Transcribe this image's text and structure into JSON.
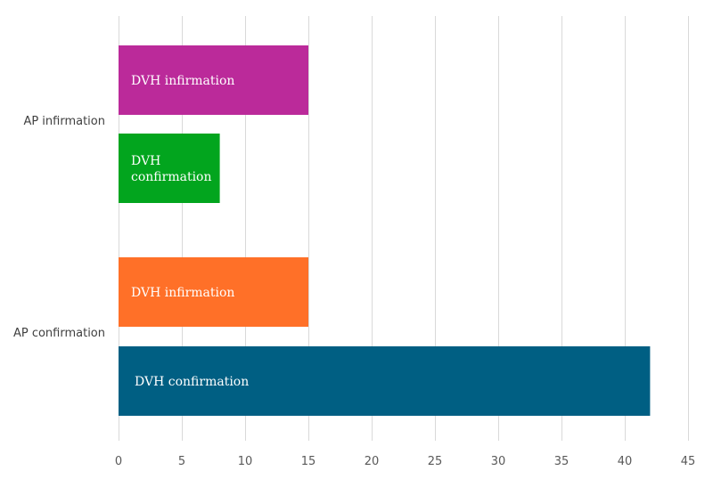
{
  "chart_data": {
    "type": "bar",
    "orientation": "horizontal",
    "title": "",
    "xlabel": "",
    "ylabel": "",
    "xlim": [
      0,
      45
    ],
    "x_ticks": [
      "0",
      "5",
      "10",
      "15",
      "20",
      "25",
      "30",
      "35",
      "40",
      "45"
    ],
    "grid": true,
    "legend": "none",
    "groups": [
      {
        "category": "AP infirmation",
        "bars": [
          {
            "label": "DVH infirmation",
            "value": 15,
            "color": "#BB2A9A"
          },
          {
            "label": "DVH confirmation",
            "value": 8,
            "color": "#02A51E"
          }
        ]
      },
      {
        "category": "AP confirmation",
        "bars": [
          {
            "label": "DVH infirmation",
            "value": 15,
            "color": "#FF7028"
          },
          {
            "label": "DVH confirmation",
            "value": 42,
            "color": "#005F83"
          }
        ]
      }
    ]
  }
}
